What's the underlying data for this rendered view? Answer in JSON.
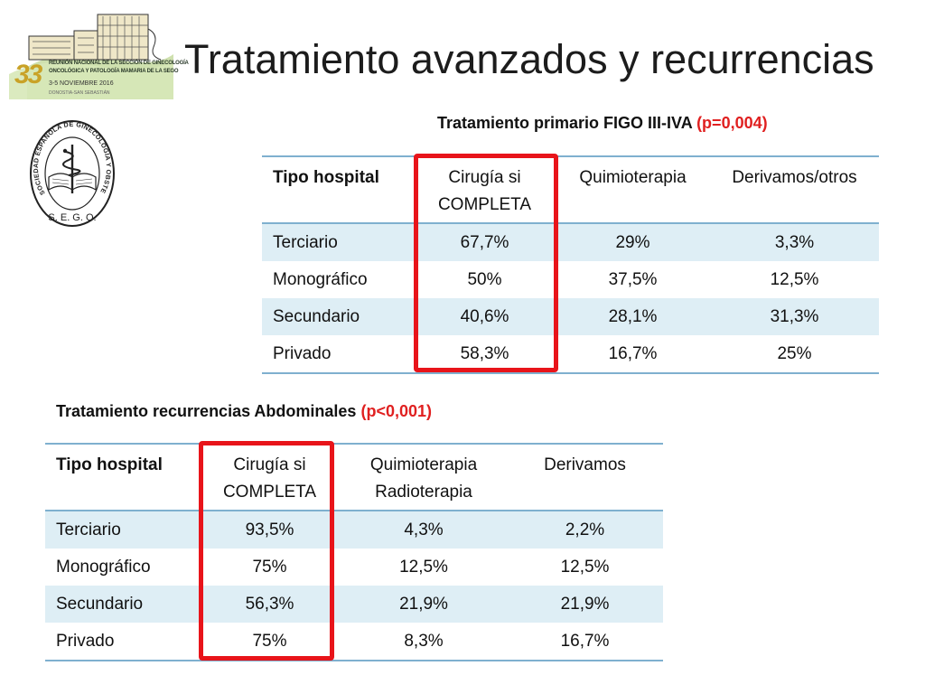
{
  "logo": {
    "number": "33",
    "line1": "REUNIÓN NACIONAL DE LA SECCIÓN DE GINECOLOGÍA",
    "line2": "ONCOLÓGICA Y PATOLOGÍA MAMARIA DE LA SEGO",
    "dates": "3-5 NOVIEMBRE 2016",
    "city": "DONOSTIA-SAN SEBASTIÁN"
  },
  "seal": {
    "ring_text": "SOCIEDAD ESPAÑOLA DE GINECOLOGÍA Y OBSTETRICIA",
    "bottom_text": "S. E. G. O."
  },
  "title": "Tratamiento avanzados y recurrencias",
  "table1": {
    "caption": "Tratamiento primario FIGO III-IVA",
    "pvalue": "(p=0,004)",
    "headers": [
      "Tipo hospital",
      "Cirugía si COMPLETA",
      "Quimioterapia",
      "Derivamos/otros"
    ],
    "rows": [
      [
        "Terciario",
        "67,7%",
        "29%",
        "3,3%"
      ],
      [
        "Monográfico",
        "50%",
        "37,5%",
        "12,5%"
      ],
      [
        "Secundario",
        "40,6%",
        "28,1%",
        "31,3%"
      ],
      [
        "Privado",
        "58,3%",
        "16,7%",
        "25%"
      ]
    ]
  },
  "table2": {
    "caption": "Tratamiento recurrencias Abdominales",
    "pvalue": "(p<0,001)",
    "headers": [
      "Tipo hospital",
      "Cirugía si COMPLETA",
      "Quimioterapia Radioterapia",
      "Derivamos"
    ],
    "rows": [
      [
        "Terciario",
        "93,5%",
        "4,3%",
        "2,2%"
      ],
      [
        "Monográfico",
        "75%",
        "12,5%",
        "12,5%"
      ],
      [
        "Secundario",
        "56,3%",
        "21,9%",
        "21,9%"
      ],
      [
        "Privado",
        "75%",
        "8,3%",
        "16,7%"
      ]
    ]
  },
  "colors": {
    "highlight": "#e8141a",
    "pvalue": "#e02020",
    "row_band": "#deeef5",
    "rule": "#7fb0cf"
  }
}
